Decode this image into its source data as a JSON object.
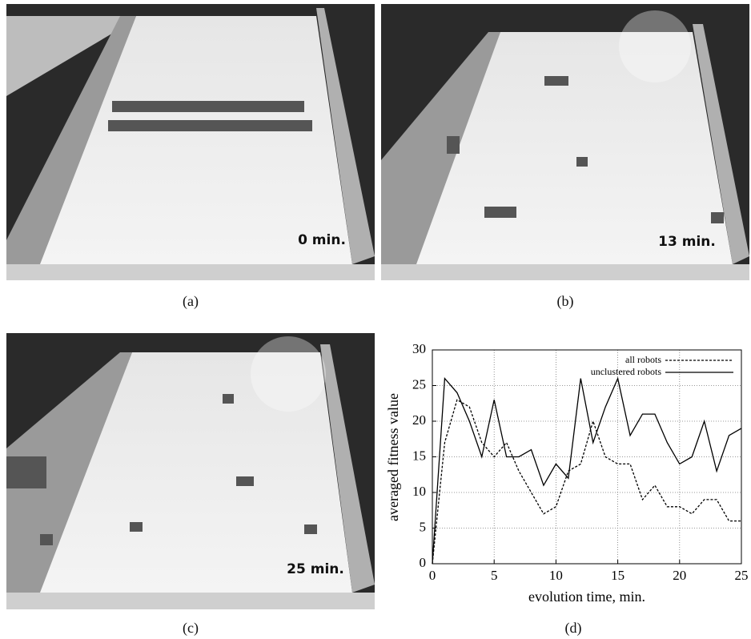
{
  "panels": [
    {
      "caption": "(a)",
      "label": "0 min."
    },
    {
      "caption": "(b)",
      "label": "13 min."
    },
    {
      "caption": "(c)",
      "label": "25 min."
    },
    {
      "caption": "(d)"
    }
  ],
  "chart_data": {
    "type": "line",
    "x_label": "evolution time, min.",
    "y_label": "averaged fitness value",
    "x": [
      0,
      1,
      2,
      3,
      4,
      5,
      6,
      7,
      8,
      9,
      10,
      11,
      12,
      13,
      14,
      15,
      16,
      17,
      18,
      19,
      20,
      21,
      22,
      23,
      24,
      25
    ],
    "series": [
      {
        "name": "all robots",
        "color": "#000000",
        "line_style": "dashed",
        "values": [
          0,
          17,
          23,
          22,
          17,
          15,
          17,
          13,
          10,
          7,
          8,
          13,
          14,
          20,
          15,
          14,
          14,
          9,
          11,
          8,
          8,
          7,
          9,
          9,
          6,
          6
        ]
      },
      {
        "name": "unclustered robots",
        "color": "#000000",
        "line_style": "solid",
        "values": [
          0,
          26,
          24,
          20,
          15,
          23,
          15,
          15,
          16,
          11,
          14,
          12,
          26,
          17,
          22,
          26,
          18,
          21,
          21,
          17,
          14,
          15,
          20,
          13,
          18,
          19
        ]
      }
    ],
    "xlim": [
      0,
      25
    ],
    "xticks": [
      0,
      5,
      10,
      15,
      20,
      25
    ],
    "ylim": [
      0,
      30
    ],
    "yticks": [
      0,
      5,
      10,
      15,
      20,
      25,
      30
    ],
    "grid": true,
    "legend": "top-right"
  }
}
